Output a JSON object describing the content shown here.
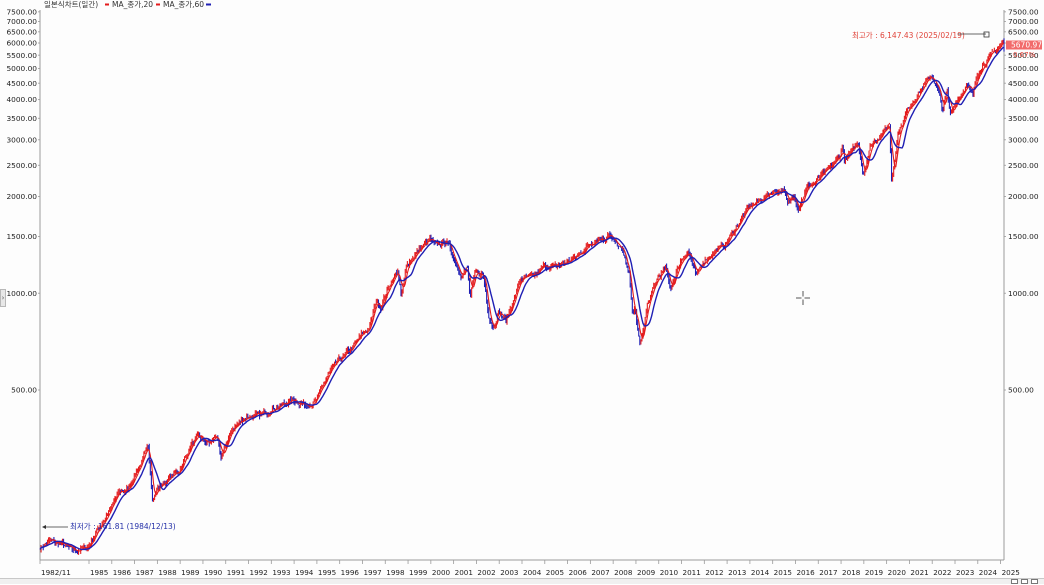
{
  "chart_data": {
    "type": "candlestick",
    "scale": "log",
    "ylim": [
      148,
      7600
    ],
    "legend": {
      "chart_name": "일본식차트(일간)",
      "entries": [
        {
          "label": "MA_종가,20",
          "color": "#e31a1c"
        },
        {
          "label": "MA_종가,60",
          "color": "#1f1fb4"
        }
      ],
      "placement": "top-left"
    },
    "y_ticks": [
      {
        "value": 7500,
        "label": "7500.00"
      },
      {
        "value": 7000,
        "label": "7000.00"
      },
      {
        "value": 6500,
        "label": "6500.00"
      },
      {
        "value": 6000,
        "label": "6000.00"
      },
      {
        "value": 5500,
        "label": "5500.00"
      },
      {
        "value": 5000,
        "label": "5000.00"
      },
      {
        "value": 4500,
        "label": "4500.00"
      },
      {
        "value": 4000,
        "label": "4000.00"
      },
      {
        "value": 3500,
        "label": "3500.00"
      },
      {
        "value": 3000,
        "label": "3000.00"
      },
      {
        "value": 2500,
        "label": "2500.00"
      },
      {
        "value": 2000,
        "label": "2000.00"
      },
      {
        "value": 1500,
        "label": "1500.00"
      },
      {
        "value": 1000,
        "label": "1000.00"
      },
      {
        "value": 500,
        "label": "500.00"
      }
    ],
    "x_ticks": [
      "1982/11",
      "1985",
      "1986",
      "1987",
      "1988",
      "1989",
      "1990",
      "1991",
      "1992",
      "1993",
      "1994",
      "1995",
      "1996",
      "1997",
      "1998",
      "1999",
      "2000",
      "2001",
      "2002",
      "2003",
      "2004",
      "2005",
      "2006",
      "2007",
      "2008",
      "2009",
      "2010",
      "2011",
      "2012",
      "2013",
      "2014",
      "2015",
      "2016",
      "2017",
      "2018",
      "2019",
      "2020",
      "2021",
      "2022",
      "2023",
      "2024",
      "2025"
    ],
    "x_range": [
      1982.85,
      2025.15
    ],
    "series": [
      {
        "name": "일본식차트(일간)",
        "points": [
          [
            1982.85,
            162
          ],
          [
            1983.3,
            170
          ],
          [
            1983.9,
            165
          ],
          [
            1984.3,
            158
          ],
          [
            1984.95,
            162
          ],
          [
            1985.3,
            180
          ],
          [
            1985.9,
            210
          ],
          [
            1986.3,
            240
          ],
          [
            1986.7,
            245
          ],
          [
            1987.2,
            290
          ],
          [
            1987.6,
            330
          ],
          [
            1987.8,
            230
          ],
          [
            1987.95,
            245
          ],
          [
            1988.5,
            265
          ],
          [
            1988.95,
            280
          ],
          [
            1989.5,
            340
          ],
          [
            1989.8,
            355
          ],
          [
            1990.3,
            340
          ],
          [
            1990.6,
            365
          ],
          [
            1990.8,
            300
          ],
          [
            1990.95,
            330
          ],
          [
            1991.3,
            380
          ],
          [
            1991.95,
            415
          ],
          [
            1992.5,
            415
          ],
          [
            1992.95,
            435
          ],
          [
            1993.5,
            450
          ],
          [
            1993.95,
            466
          ],
          [
            1994.5,
            450
          ],
          [
            1994.95,
            460
          ],
          [
            1995.5,
            560
          ],
          [
            1995.95,
            615
          ],
          [
            1996.5,
            670
          ],
          [
            1996.95,
            740
          ],
          [
            1997.3,
            780
          ],
          [
            1997.6,
            950
          ],
          [
            1997.8,
            900
          ],
          [
            1997.95,
            970
          ],
          [
            1998.3,
            1100
          ],
          [
            1998.55,
            1180
          ],
          [
            1998.7,
            970
          ],
          [
            1998.95,
            1230
          ],
          [
            1999.5,
            1370
          ],
          [
            1999.95,
            1469
          ],
          [
            2000.2,
            1400
          ],
          [
            2000.7,
            1450
          ],
          [
            2000.95,
            1320
          ],
          [
            2001.3,
            1150
          ],
          [
            2001.6,
            1200
          ],
          [
            2001.72,
            970
          ],
          [
            2001.95,
            1150
          ],
          [
            2002.3,
            1140
          ],
          [
            2002.55,
            850
          ],
          [
            2002.75,
            780
          ],
          [
            2002.95,
            880
          ],
          [
            2003.3,
            820
          ],
          [
            2003.95,
            1110
          ],
          [
            2004.5,
            1120
          ],
          [
            2004.95,
            1212
          ],
          [
            2005.5,
            1210
          ],
          [
            2005.95,
            1248
          ],
          [
            2006.4,
            1300
          ],
          [
            2006.95,
            1418
          ],
          [
            2007.4,
            1500
          ],
          [
            2007.6,
            1460
          ],
          [
            2007.8,
            1565
          ],
          [
            2007.95,
            1468
          ],
          [
            2008.4,
            1350
          ],
          [
            2008.7,
            1160
          ],
          [
            2008.85,
            850
          ],
          [
            2008.95,
            900
          ],
          [
            2009.18,
            680
          ],
          [
            2009.5,
            920
          ],
          [
            2009.95,
            1115
          ],
          [
            2010.3,
            1200
          ],
          [
            2010.5,
            1030
          ],
          [
            2010.95,
            1257
          ],
          [
            2011.3,
            1360
          ],
          [
            2011.65,
            1120
          ],
          [
            2011.95,
            1257
          ],
          [
            2012.5,
            1360
          ],
          [
            2012.95,
            1426
          ],
          [
            2013.5,
            1650
          ],
          [
            2013.95,
            1848
          ],
          [
            2014.5,
            1960
          ],
          [
            2014.95,
            2058
          ],
          [
            2015.5,
            2100
          ],
          [
            2015.65,
            1880
          ],
          [
            2015.95,
            2043
          ],
          [
            2016.1,
            1830
          ],
          [
            2016.5,
            2130
          ],
          [
            2016.95,
            2238
          ],
          [
            2017.5,
            2450
          ],
          [
            2017.95,
            2673
          ],
          [
            2018.08,
            2870
          ],
          [
            2018.15,
            2580
          ],
          [
            2018.75,
            2930
          ],
          [
            2018.98,
            2350
          ],
          [
            2019.3,
            2900
          ],
          [
            2019.95,
            3230
          ],
          [
            2020.12,
            3380
          ],
          [
            2020.22,
            2240
          ],
          [
            2020.5,
            3150
          ],
          [
            2020.95,
            3756
          ],
          [
            2021.5,
            4300
          ],
          [
            2021.98,
            4766
          ],
          [
            2022.3,
            4200
          ],
          [
            2022.45,
            3700
          ],
          [
            2022.65,
            4280
          ],
          [
            2022.78,
            3580
          ],
          [
            2022.95,
            3840
          ],
          [
            2023.5,
            4450
          ],
          [
            2023.8,
            4120
          ],
          [
            2023.95,
            4770
          ],
          [
            2024.3,
            5250
          ],
          [
            2024.6,
            5500
          ],
          [
            2024.95,
            5880
          ],
          [
            2025.13,
            6147
          ],
          [
            2025.15,
            5670
          ]
        ]
      },
      {
        "name": "MA_종가,20",
        "color": "#e31a1c"
      },
      {
        "name": "MA_종가,60",
        "color": "#1f1fb4"
      }
    ],
    "annotations": {
      "high": {
        "label": "최고가 : 6,147.43 (2025/02/19)",
        "value": 6147.43,
        "date": "2025/02/19"
      },
      "low": {
        "label": "최저가 : 161.81 (1984/12/13)",
        "value": 161.81,
        "date": "1984/12/13"
      },
      "last_price": {
        "value": 5670.97,
        "label": "5670.97",
        "change_label": "0.67%"
      }
    },
    "grid": false
  },
  "colors": {
    "up": "#e31a1c",
    "down": "#1f1fb4",
    "axis_text": "#222222",
    "annotation_high": "#e0443a",
    "annotation_low": "#2430a8",
    "last_price_bg": "#f26b6b"
  },
  "icons": {
    "crosshair": "crosshair-cursor-icon",
    "panel_toggle": "chevron-right-icon"
  },
  "toggle_glyph": "›"
}
